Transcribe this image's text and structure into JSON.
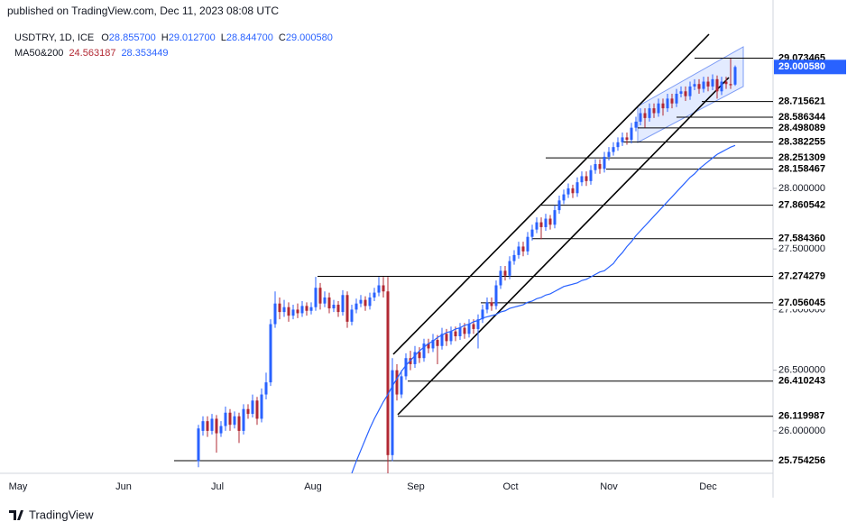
{
  "header": {
    "published": "published on TradingView.com, Dec 11, 2023 08:08 UTC"
  },
  "chart_data": {
    "type": "candlestick",
    "symbol": "USDTRY, 1D, ICE",
    "ohlc_legend": [
      {
        "label": "O",
        "value": "28.855700"
      },
      {
        "label": "H",
        "value": "29.012700"
      },
      {
        "label": "L",
        "value": "28.844700"
      },
      {
        "label": "C",
        "value": "29.000580"
      }
    ],
    "ma_legend": {
      "name": "MA50&200",
      "values": [
        "24.563187",
        "28.353449"
      ],
      "colors": [
        "#b22833",
        "#2962ff"
      ]
    },
    "up_color": "#2962ff",
    "down_color": "#b22833",
    "candles": [
      [
        25.75,
        26.05,
        25.7,
        26.02
      ],
      [
        26.0,
        26.12,
        25.96,
        26.08
      ],
      [
        26.08,
        26.12,
        25.95,
        26.0
      ],
      [
        26.0,
        26.14,
        25.97,
        26.1
      ],
      [
        26.1,
        26.13,
        25.82,
        25.98
      ],
      [
        25.98,
        26.08,
        25.95,
        26.04
      ],
      [
        26.04,
        26.2,
        26.0,
        26.15
      ],
      [
        26.15,
        26.18,
        26.0,
        26.05
      ],
      [
        26.05,
        26.16,
        26.02,
        26.12
      ],
      [
        26.12,
        26.15,
        25.9,
        26.0
      ],
      [
        26.0,
        26.22,
        25.97,
        26.18
      ],
      [
        26.18,
        26.22,
        26.1,
        26.14
      ],
      [
        26.14,
        26.3,
        26.11,
        26.25
      ],
      [
        26.25,
        26.28,
        26.05,
        26.1
      ],
      [
        26.1,
        26.35,
        26.07,
        26.3
      ],
      [
        26.3,
        26.48,
        26.26,
        26.4
      ],
      [
        26.4,
        26.92,
        26.37,
        26.88
      ],
      [
        26.88,
        27.15,
        26.85,
        27.05
      ],
      [
        27.05,
        27.1,
        26.92,
        26.98
      ],
      [
        26.98,
        27.08,
        26.94,
        27.02
      ],
      [
        27.02,
        27.06,
        26.9,
        26.95
      ],
      [
        26.95,
        27.04,
        26.92,
        27.0
      ],
      [
        27.0,
        27.05,
        26.93,
        26.97
      ],
      [
        26.97,
        27.07,
        26.94,
        27.03
      ],
      [
        27.03,
        27.06,
        26.95,
        26.99
      ],
      [
        26.99,
        27.06,
        26.96,
        27.02
      ],
      [
        27.02,
        27.27,
        26.99,
        27.18
      ],
      [
        27.18,
        27.22,
        27.0,
        27.05
      ],
      [
        27.05,
        27.15,
        27.02,
        27.1
      ],
      [
        27.1,
        27.14,
        26.97,
        27.01
      ],
      [
        27.01,
        27.08,
        26.98,
        27.04
      ],
      [
        27.04,
        27.07,
        26.94,
        26.98
      ],
      [
        26.98,
        27.16,
        26.95,
        27.12
      ],
      [
        27.12,
        27.15,
        26.85,
        26.9
      ],
      [
        26.9,
        27.04,
        26.87,
        27.0
      ],
      [
        27.0,
        27.09,
        26.97,
        27.05
      ],
      [
        27.05,
        27.12,
        27.02,
        27.08
      ],
      [
        27.08,
        27.11,
        26.99,
        27.03
      ],
      [
        27.03,
        27.14,
        27.0,
        27.1
      ],
      [
        27.1,
        27.18,
        27.07,
        27.14
      ],
      [
        27.14,
        27.27,
        27.11,
        27.2
      ],
      [
        27.2,
        27.27,
        27.1,
        27.15
      ],
      [
        27.15,
        27.27,
        25.65,
        25.8
      ],
      [
        25.8,
        26.6,
        25.75,
        26.5
      ],
      [
        26.5,
        26.55,
        26.25,
        26.3
      ],
      [
        26.3,
        26.5,
        26.27,
        26.45
      ],
      [
        26.45,
        26.64,
        26.42,
        26.6
      ],
      [
        26.6,
        26.66,
        26.5,
        26.55
      ],
      [
        26.55,
        26.7,
        26.52,
        26.65
      ],
      [
        26.65,
        26.69,
        26.56,
        26.6
      ],
      [
        26.6,
        26.76,
        26.57,
        26.72
      ],
      [
        26.72,
        26.76,
        26.64,
        26.68
      ],
      [
        26.68,
        26.8,
        26.65,
        26.75
      ],
      [
        26.75,
        26.79,
        26.55,
        26.7
      ],
      [
        26.7,
        26.85,
        26.67,
        26.8
      ],
      [
        26.8,
        26.84,
        26.7,
        26.74
      ],
      [
        26.74,
        26.86,
        26.71,
        26.82
      ],
      [
        26.82,
        26.86,
        26.74,
        26.78
      ],
      [
        26.78,
        26.89,
        26.75,
        26.85
      ],
      [
        26.85,
        26.89,
        26.76,
        26.8
      ],
      [
        26.8,
        26.92,
        26.77,
        26.88
      ],
      [
        26.88,
        26.92,
        26.8,
        26.84
      ],
      [
        26.84,
        26.96,
        26.68,
        26.92
      ],
      [
        26.92,
        27.04,
        26.89,
        27.0
      ],
      [
        27.0,
        27.1,
        26.97,
        27.06
      ],
      [
        27.06,
        27.1,
        26.99,
        27.03
      ],
      [
        27.03,
        27.24,
        27.0,
        27.2
      ],
      [
        27.2,
        27.36,
        27.17,
        27.32
      ],
      [
        27.32,
        27.36,
        27.24,
        27.28
      ],
      [
        27.28,
        27.44,
        27.25,
        27.4
      ],
      [
        27.4,
        27.49,
        27.37,
        27.45
      ],
      [
        27.45,
        27.56,
        27.42,
        27.52
      ],
      [
        27.52,
        27.56,
        27.44,
        27.48
      ],
      [
        27.48,
        27.64,
        27.45,
        27.6
      ],
      [
        27.6,
        27.7,
        27.57,
        27.66
      ],
      [
        27.66,
        27.76,
        27.63,
        27.72
      ],
      [
        27.72,
        27.76,
        27.58,
        27.68
      ],
      [
        27.68,
        27.79,
        27.65,
        27.75
      ],
      [
        27.75,
        27.78,
        27.66,
        27.7
      ],
      [
        27.7,
        27.86,
        27.67,
        27.82
      ],
      [
        27.82,
        27.94,
        27.79,
        27.9
      ],
      [
        27.9,
        27.99,
        27.87,
        27.95
      ],
      [
        27.95,
        28.04,
        27.92,
        28.0
      ],
      [
        28.0,
        28.03,
        27.92,
        27.96
      ],
      [
        27.96,
        28.09,
        27.93,
        28.05
      ],
      [
        28.05,
        28.14,
        28.02,
        28.1
      ],
      [
        28.1,
        28.14,
        28.02,
        28.06
      ],
      [
        28.06,
        28.19,
        28.03,
        28.15
      ],
      [
        28.15,
        28.24,
        28.12,
        28.2
      ],
      [
        28.2,
        28.24,
        28.12,
        28.16
      ],
      [
        28.16,
        28.3,
        28.13,
        28.26
      ],
      [
        28.26,
        28.34,
        28.23,
        28.3
      ],
      [
        28.3,
        28.38,
        28.27,
        28.34
      ],
      [
        28.34,
        28.42,
        28.31,
        28.38
      ],
      [
        28.38,
        28.46,
        28.35,
        28.42
      ],
      [
        28.42,
        28.46,
        28.36,
        28.4
      ],
      [
        28.4,
        28.54,
        28.37,
        28.5
      ],
      [
        28.5,
        28.59,
        28.47,
        28.55
      ],
      [
        28.55,
        28.66,
        28.52,
        28.62
      ],
      [
        28.62,
        28.66,
        28.5,
        28.58
      ],
      [
        28.58,
        28.7,
        28.55,
        28.66
      ],
      [
        28.66,
        28.7,
        28.58,
        28.62
      ],
      [
        28.62,
        28.74,
        28.59,
        28.7
      ],
      [
        28.7,
        28.74,
        28.6,
        28.66
      ],
      [
        28.66,
        28.78,
        28.63,
        28.74
      ],
      [
        28.74,
        28.78,
        28.66,
        28.7
      ],
      [
        28.7,
        28.82,
        28.67,
        28.78
      ],
      [
        28.78,
        28.84,
        28.75,
        28.8
      ],
      [
        28.8,
        28.84,
        28.72,
        28.76
      ],
      [
        28.76,
        28.88,
        28.73,
        28.84
      ],
      [
        28.84,
        28.9,
        28.81,
        28.86
      ],
      [
        28.86,
        28.9,
        28.78,
        28.82
      ],
      [
        28.82,
        28.92,
        28.79,
        28.88
      ],
      [
        28.88,
        28.92,
        28.8,
        28.84
      ],
      [
        28.84,
        28.94,
        28.81,
        28.9
      ],
      [
        28.9,
        28.93,
        28.74,
        28.8
      ],
      [
        28.8,
        28.92,
        28.77,
        28.88
      ],
      [
        28.88,
        28.92,
        28.82,
        28.86
      ],
      [
        28.86,
        29.07,
        28.82,
        28.85
      ],
      [
        28.8557,
        29.0127,
        28.8447,
        29.00058
      ]
    ],
    "ma": {
      "color": "#2962ff",
      "values": [
        null,
        null,
        null,
        null,
        null,
        null,
        null,
        null,
        null,
        null,
        null,
        null,
        null,
        null,
        null,
        null,
        null,
        null,
        null,
        null,
        null,
        null,
        null,
        null,
        null,
        null,
        null,
        null,
        null,
        null,
        null,
        null,
        null,
        null,
        25.65,
        25.75,
        25.84,
        25.93,
        26.02,
        26.1,
        26.17,
        26.24,
        26.3,
        26.37,
        26.43,
        26.49,
        26.54,
        26.58,
        26.62,
        26.66,
        26.69,
        26.72,
        26.74,
        26.77,
        26.79,
        26.81,
        26.82,
        26.84,
        26.85,
        26.87,
        26.88,
        26.9,
        26.91,
        26.93,
        26.94,
        26.95,
        26.96,
        26.98,
        26.99,
        27.01,
        27.02,
        27.03,
        27.04,
        27.06,
        27.07,
        27.09,
        27.1,
        27.12,
        27.13,
        27.15,
        27.17,
        27.19,
        27.2,
        27.21,
        27.22,
        27.24,
        27.25,
        27.27,
        27.29,
        27.31,
        27.32,
        27.35,
        27.38,
        27.43,
        27.47,
        27.52,
        27.56,
        27.61,
        27.65,
        27.69,
        27.73,
        27.77,
        27.81,
        27.85,
        27.89,
        27.93,
        27.97,
        28.01,
        28.05,
        28.09,
        28.12,
        28.16,
        28.19,
        28.22,
        28.25,
        28.28,
        28.3,
        28.32,
        28.34,
        28.353449
      ]
    },
    "ylim": [
      25.65,
      29.33
    ],
    "yticks": [
      {
        "value": 26,
        "label": "26.000000"
      },
      {
        "value": 26.5,
        "label": "26.500000"
      },
      {
        "value": 27,
        "label": "27.000000"
      },
      {
        "value": 27.5,
        "label": "27.500000"
      },
      {
        "value": 28,
        "label": "28.000000"
      }
    ],
    "levels": [
      29.073465,
      28.715621,
      28.586344,
      28.498089,
      28.382255,
      28.251309,
      28.158467,
      27.860542,
      {
        "value": 27.58436,
        "label": "27.584360"
      },
      27.274279,
      27.056045,
      26.410243,
      26.119987,
      25.754256
    ],
    "current_price": {
      "value": 29.00058,
      "label": "29.000580"
    },
    "x_labels": [
      "May",
      "Jun",
      "Jul",
      "Aug",
      "Sep",
      "Oct",
      "Nov",
      "Dec"
    ]
  },
  "footer": {
    "brand": "TradingView"
  }
}
